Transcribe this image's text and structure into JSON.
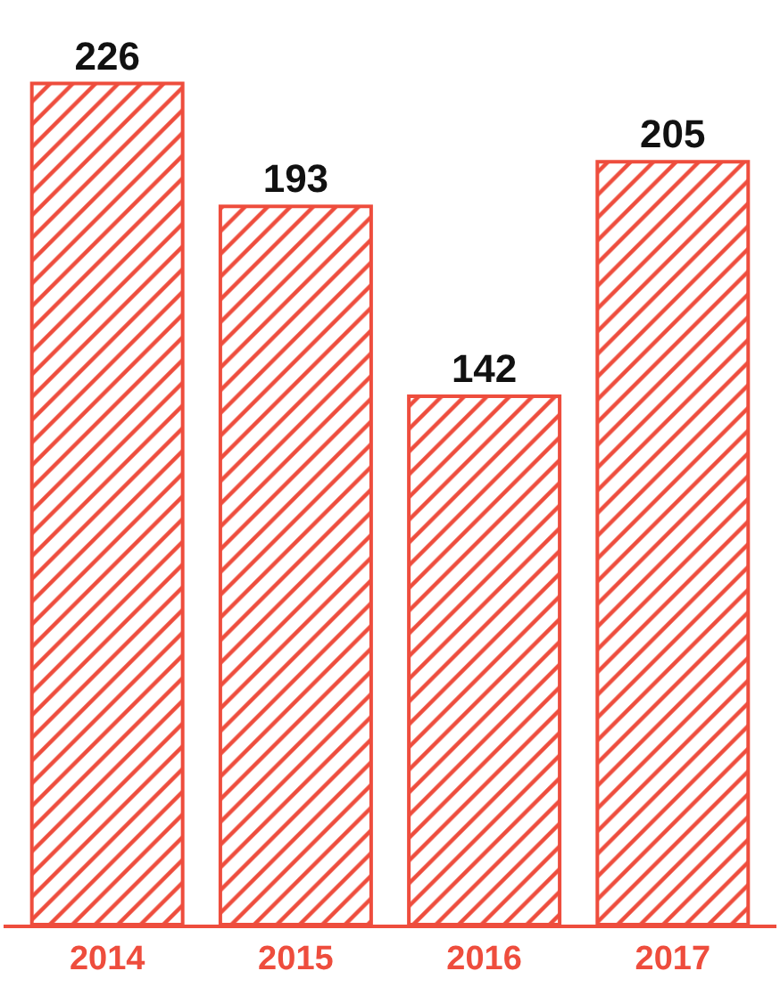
{
  "chart_data": {
    "type": "bar",
    "categories": [
      "2014",
      "2015",
      "2016",
      "2017"
    ],
    "values": [
      226,
      193,
      142,
      205
    ],
    "color": "#ee4d3d",
    "data_labels": true
  }
}
